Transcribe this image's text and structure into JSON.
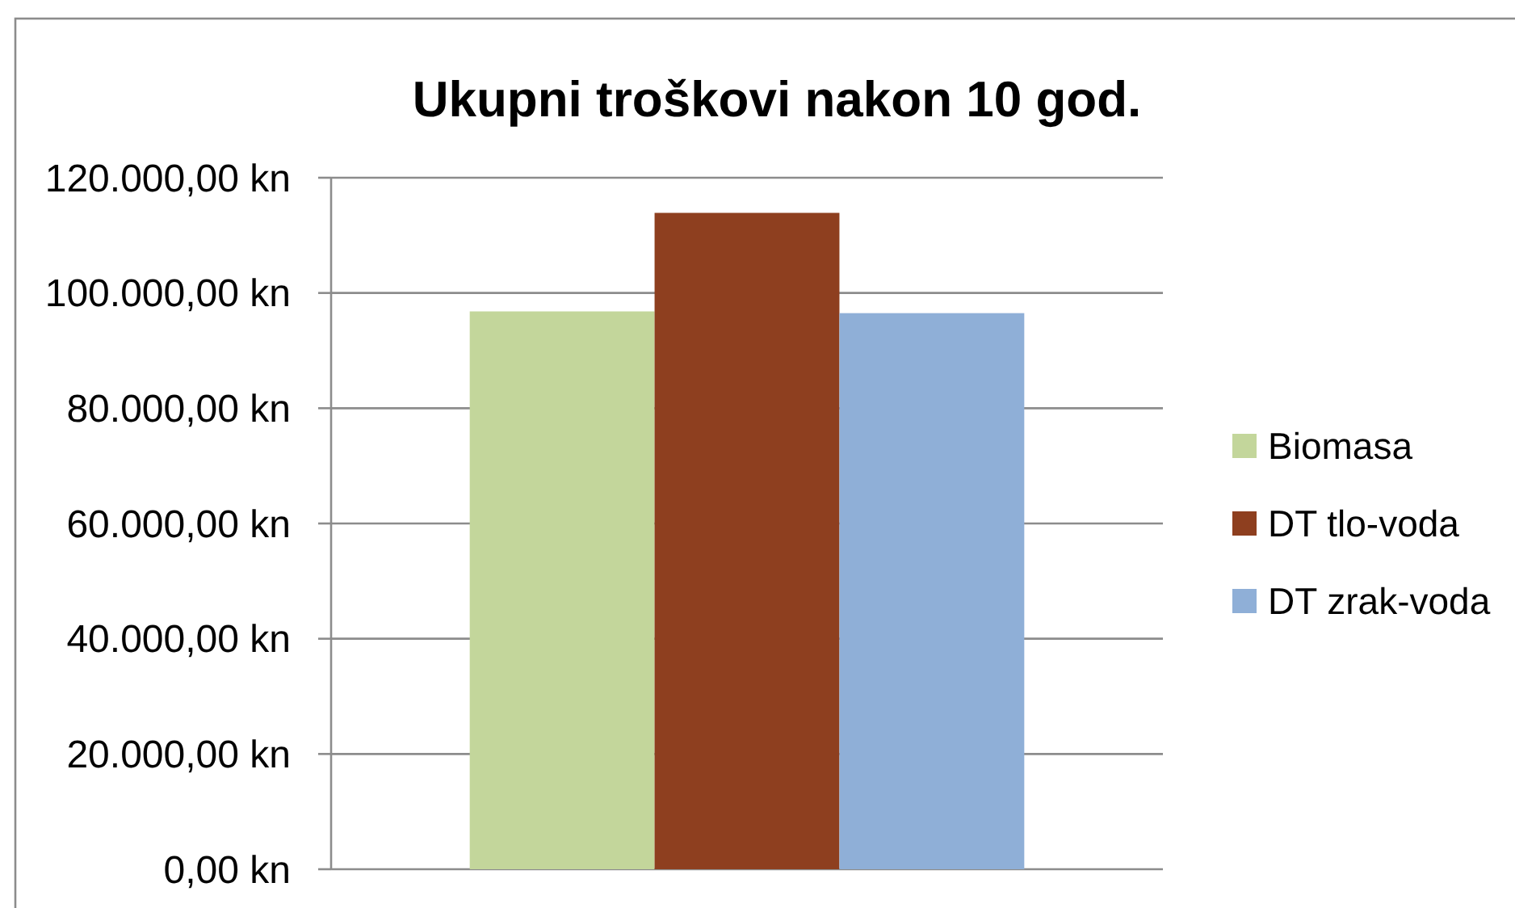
{
  "chart_data": {
    "type": "bar",
    "title": "Ukupni troškovi nakon 10 god.",
    "categories": [
      null
    ],
    "series": [
      {
        "name": "Biomasa",
        "color": "#c3d69b",
        "values": [
          96800
        ]
      },
      {
        "name": "DT tlo-voda",
        "color": "#8e3f1f",
        "values": [
          113900
        ]
      },
      {
        "name": "DT zrak-voda",
        "color": "#8fafd7",
        "values": [
          96500
        ]
      }
    ],
    "ylim": [
      0,
      120000
    ],
    "yticks": [
      {
        "value": 0,
        "label": "0,00 kn"
      },
      {
        "value": 20000,
        "label": "20.000,00 kn"
      },
      {
        "value": 40000,
        "label": "40.000,00 kn"
      },
      {
        "value": 60000,
        "label": "60.000,00 kn"
      },
      {
        "value": 80000,
        "label": "80.000,00 kn"
      },
      {
        "value": 100000,
        "label": "100.000,00 kn"
      },
      {
        "value": 120000,
        "label": "120.000,00 kn"
      }
    ],
    "grid": "y",
    "legend": "right"
  }
}
